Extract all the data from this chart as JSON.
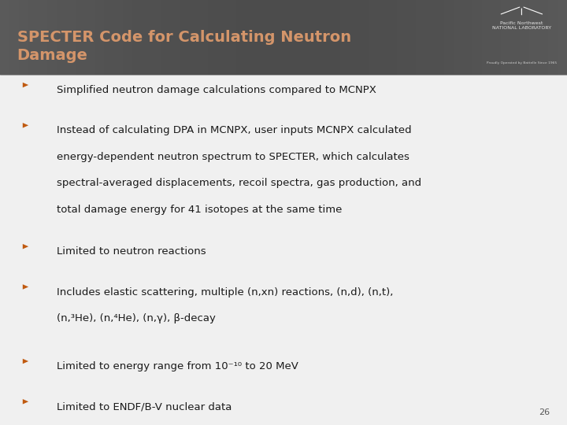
{
  "title": "SPECTER Code for Calculating Neutron\nDamage",
  "title_color": "#D4956A",
  "header_bg_color": "#5a5a5a",
  "body_bg_color": "#f0f0f0",
  "bullet_color": "#C05A10",
  "text_color": "#1a1a1a",
  "slide_number": "26",
  "bullets": [
    "Simplified neutron damage calculations compared to MCNPX",
    "Instead of calculating DPA in MCNPX, user inputs MCNPX calculated\nenergy-dependent neutron spectrum to SPECTER, which calculates\nspectral-averaged displacements, recoil spectra, gas production, and\ntotal damage energy for 41 isotopes at the same time",
    "Limited to neutron reactions",
    "Includes elastic scattering, multiple (n,xn) reactions, (n,d), (n,t),\n(n,³He), (n,⁴He), (n,γ), β-decay",
    "Limited to energy range from 10⁻¹⁰ to 20 MeV",
    "Limited to ENDF/B-V nuclear data"
  ]
}
